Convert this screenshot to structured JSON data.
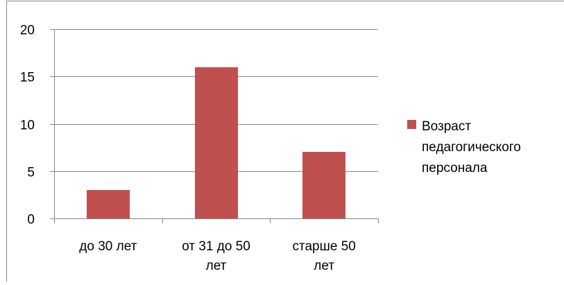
{
  "colors": {
    "bar": "#c0504d",
    "grid": "#868686",
    "axis": "#868686",
    "border": "#868686",
    "background": "#ffffff"
  },
  "chart_data": {
    "type": "bar",
    "title": "",
    "xlabel": "",
    "ylabel": "",
    "categories": [
      [
        "до 30 лет"
      ],
      [
        "от 31 до 50",
        "лет"
      ],
      [
        "старше 50",
        "лет"
      ]
    ],
    "series": [
      {
        "name": "Возраст педагогического персонала",
        "values": [
          3,
          16,
          7
        ]
      }
    ],
    "legend_lines": [
      "Возраст",
      "педагогического",
      "персонала"
    ],
    "ylim": [
      0,
      20
    ],
    "yticks": [
      0,
      5,
      10,
      15,
      20
    ],
    "grid": true,
    "legend_position": "right"
  }
}
